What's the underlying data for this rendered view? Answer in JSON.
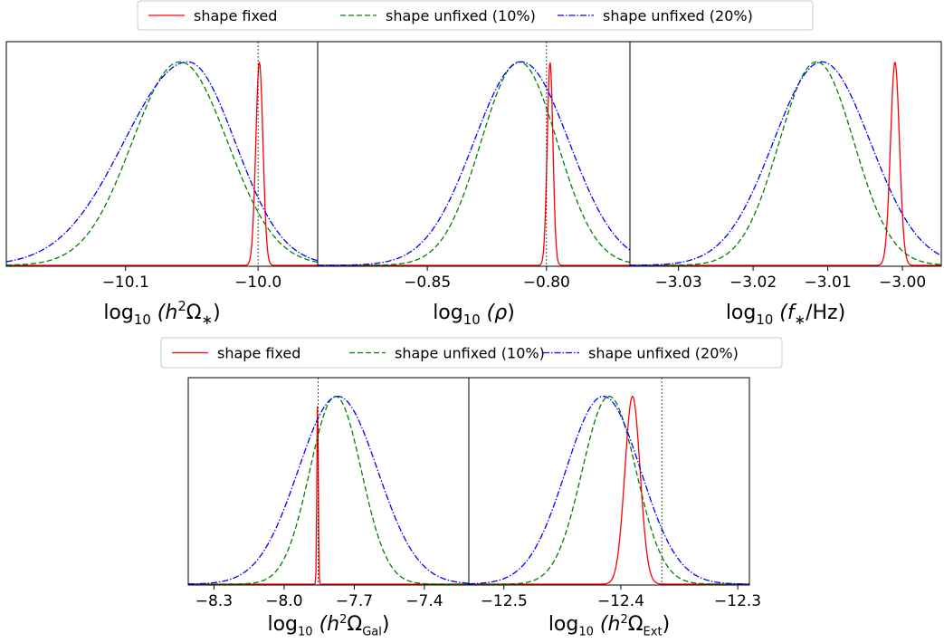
{
  "legend_top": {
    "entries": [
      {
        "label": "shape fixed",
        "color": "#ff0000",
        "dash": "solid"
      },
      {
        "label": "shape unfixed (10%)",
        "color": "#008000",
        "dash": "dashed"
      },
      {
        "label": "shape unfixed (20%)",
        "color": "#0000ff",
        "dash": "dashdot"
      }
    ]
  },
  "legend_bottom": {
    "entries": [
      {
        "label": "shape fixed",
        "color": "#ff0000",
        "dash": "solid"
      },
      {
        "label": "shape unfixed (10%)",
        "color": "#008000",
        "dash": "dashed"
      },
      {
        "label": "shape unfixed (20%)",
        "color": "#0000ff",
        "dash": "dashdot"
      }
    ]
  },
  "chart_data": [
    {
      "type": "line",
      "xlabel": {
        "base": "log",
        "sub": "10",
        "arg_pre": "(h",
        "sup": "2",
        "arg_mid": "Ω",
        "sub2": "∗",
        "arg_post": ")"
      },
      "xlim": [
        -10.19,
        -9.955
      ],
      "ticks": [
        {
          "v": -10.1,
          "label": "−10.1"
        },
        {
          "v": -10.0,
          "label": "−10.0"
        }
      ],
      "truth": -10.0,
      "series": [
        {
          "mean": -9.999,
          "sd": 0.0027,
          "skew": 0
        },
        {
          "mean": -10.059,
          "sd": 0.036,
          "skew": 0
        },
        {
          "mean": -10.053,
          "sd": 0.042,
          "skew": -0.3
        }
      ]
    },
    {
      "type": "line",
      "xlabel": {
        "base": "log",
        "sub": "10",
        "arg_pre": "(ρ",
        "sup": "",
        "arg_mid": "",
        "sub2": "",
        "arg_post": ")"
      },
      "xlim": [
        -0.896,
        -0.765
      ],
      "ticks": [
        {
          "v": -0.85,
          "label": "−0.85"
        },
        {
          "v": -0.8,
          "label": "−0.80"
        }
      ],
      "truth": -0.8,
      "series": [
        {
          "mean": -0.7985,
          "sd": 0.0012,
          "skew": 0
        },
        {
          "mean": -0.8115,
          "sd": 0.016,
          "skew": 0
        },
        {
          "mean": -0.8105,
          "sd": 0.02,
          "skew": 0
        }
      ]
    },
    {
      "type": "line",
      "xlabel": {
        "base": "log",
        "sub": "10",
        "arg_pre": "(f",
        "sup": "",
        "arg_mid": "",
        "sub2": "∗",
        "arg_post": "/Hz)"
      },
      "xlim": [
        -3.0365,
        -2.9948
      ],
      "ticks": [
        {
          "v": -3.03,
          "label": "−3.03"
        },
        {
          "v": -3.02,
          "label": "−3.02"
        },
        {
          "v": -3.01,
          "label": "−3.01"
        },
        {
          "v": -3.0,
          "label": "−3.00"
        }
      ],
      "truth": null,
      "series": [
        {
          "mean": -3.001,
          "sd": 0.0006,
          "skew": 0
        },
        {
          "mean": -3.0115,
          "sd": 0.005,
          "skew": 0
        },
        {
          "mean": -3.0108,
          "sd": 0.0065,
          "skew": 0
        }
      ]
    },
    {
      "type": "line",
      "xlabel": {
        "base": "log",
        "sub": "10",
        "arg_pre": "(h",
        "sup": "2",
        "arg_mid": "Ω",
        "sub2": "Gal",
        "arg_post": ")"
      },
      "xlim": [
        -8.41,
        -7.21
      ],
      "ticks": [
        {
          "v": -8.3,
          "label": "−8.3"
        },
        {
          "v": -8.0,
          "label": "−8.0"
        },
        {
          "v": -7.7,
          "label": "−7.7"
        },
        {
          "v": -7.4,
          "label": "−7.4"
        }
      ],
      "truth": -7.855,
      "series": [
        {
          "mean": -7.857,
          "sd": 0.003,
          "skew": 0
        },
        {
          "mean": -7.78,
          "sd": 0.11,
          "skew": 0
        },
        {
          "mean": -7.77,
          "sd": 0.17,
          "skew": 0
        }
      ]
    },
    {
      "type": "line",
      "xlabel": {
        "base": "log",
        "sub": "10",
        "arg_pre": "(h",
        "sup": "2",
        "arg_mid": "Ω",
        "sub2": "Ext",
        "arg_post": ")"
      },
      "xlim": [
        -12.53,
        -12.29
      ],
      "ticks": [
        {
          "v": -12.5,
          "label": "−12.5"
        },
        {
          "v": -12.4,
          "label": "−12.4"
        },
        {
          "v": -12.3,
          "label": "−12.3"
        }
      ],
      "truth": -12.365,
      "series": [
        {
          "mean": -12.39,
          "sd": 0.0065,
          "skew": 0
        },
        {
          "mean": -12.41,
          "sd": 0.023,
          "skew": 0
        },
        {
          "mean": -12.415,
          "sd": 0.032,
          "skew": 0
        }
      ]
    }
  ]
}
